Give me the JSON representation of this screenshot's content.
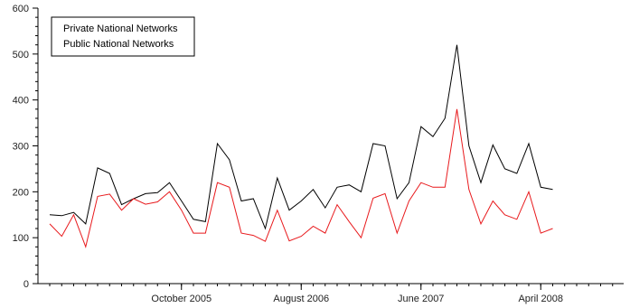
{
  "chart_data": {
    "type": "line",
    "title": "",
    "xlabel": "",
    "ylabel": "",
    "ylim": [
      0,
      600
    ],
    "y_ticks": [
      0,
      100,
      200,
      300,
      400,
      500,
      600
    ],
    "x_ticks": [
      "October 2005",
      "August 2006",
      "June 2007",
      "April 2008"
    ],
    "grid": false,
    "legend_position": "top-left",
    "x": [
      "Nov 2004",
      "Dec 2004",
      "Jan 2005",
      "Feb 2005",
      "Mar 2005",
      "Apr 2005",
      "May 2005",
      "Jun 2005",
      "Jul 2005",
      "Aug 2005",
      "Sep 2005",
      "Oct 2005",
      "Nov 2005",
      "Dec 2005",
      "Jan 2006",
      "Feb 2006",
      "Mar 2006",
      "Apr 2006",
      "May 2006",
      "Jun 2006",
      "Jul 2006",
      "Aug 2006",
      "Sep 2006",
      "Oct 2006",
      "Nov 2006",
      "Dec 2006",
      "Jan 2007",
      "Feb 2007",
      "Mar 2007",
      "Apr 2007",
      "May 2007",
      "Jun 2007",
      "Jul 2007",
      "Aug 2007",
      "Sep 2007",
      "Oct 2007",
      "Nov 2007",
      "Dec 2007",
      "Jan 2008",
      "Feb 2008",
      "Mar 2008",
      "Apr 2008",
      "May 2008",
      "Jun 2008"
    ],
    "series": [
      {
        "name": "Private National Networks",
        "color": "#000000",
        "values": [
          150,
          148,
          155,
          130,
          252,
          240,
          172,
          185,
          196,
          198,
          220,
          180,
          140,
          135,
          305,
          270,
          180,
          185,
          120,
          230,
          160,
          180,
          205,
          165,
          210,
          215,
          200,
          305,
          300,
          185,
          220,
          342,
          320,
          360,
          520,
          300,
          220,
          302,
          250,
          240,
          305,
          210,
          205,
          null
        ]
      },
      {
        "name": "Public National Networks",
        "color": "#e8191c",
        "values": [
          130,
          103,
          150,
          80,
          190,
          195,
          160,
          185,
          173,
          178,
          200,
          160,
          110,
          110,
          220,
          210,
          110,
          105,
          92,
          160,
          93,
          103,
          125,
          110,
          172,
          135,
          100,
          186,
          196,
          110,
          180,
          220,
          210,
          210,
          380,
          205,
          130,
          180,
          150,
          140,
          200,
          110,
          120,
          null
        ]
      }
    ]
  }
}
